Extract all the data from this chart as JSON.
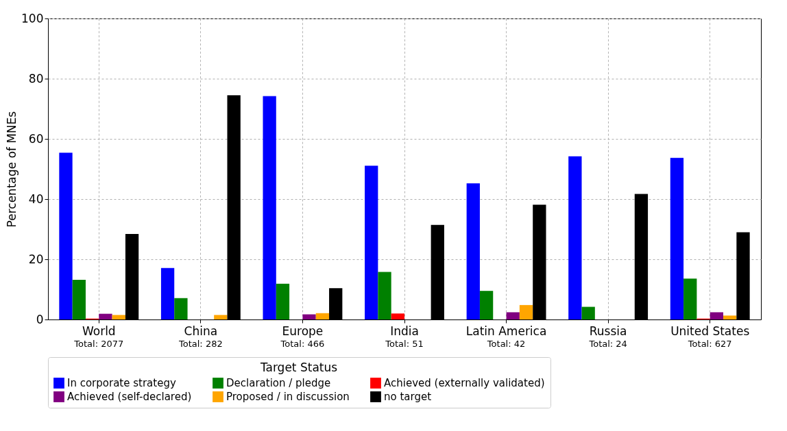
{
  "chart_data": {
    "type": "bar",
    "ylabel": "Percentage of MNEs",
    "legend_title": "Target Status",
    "categories": [
      "World",
      "China",
      "Europe",
      "India",
      "Latin America",
      "Russia",
      "United States"
    ],
    "series": [
      {
        "name": "In corporate strategy",
        "color": "#0000ff",
        "values": [
          55.4,
          17.1,
          74.2,
          51.1,
          45.2,
          54.2,
          53.7
        ]
      },
      {
        "name": "Declaration / pledge",
        "color": "#008000",
        "values": [
          13.2,
          7.1,
          11.9,
          15.8,
          9.5,
          4.2,
          13.6
        ]
      },
      {
        "name": "Achieved (externally validated)",
        "color": "#ff0000",
        "values": [
          0.3,
          0,
          0,
          2.0,
          0,
          0,
          0.3
        ]
      },
      {
        "name": "Achieved (self-declared)",
        "color": "#800080",
        "values": [
          1.9,
          0,
          1.7,
          0,
          2.4,
          0,
          2.4
        ]
      },
      {
        "name": "Proposed / in discussion",
        "color": "#ffa500",
        "values": [
          1.5,
          1.5,
          2.1,
          0,
          4.8,
          0,
          1.3
        ]
      },
      {
        "name": "no target",
        "color": "#000000",
        "values": [
          28.4,
          74.5,
          10.4,
          31.4,
          38.1,
          41.7,
          29.0
        ]
      }
    ],
    "ylim": [
      0,
      100
    ],
    "yticks": [
      0,
      20,
      40,
      60,
      80,
      100
    ],
    "grid": true,
    "legend": "bottom",
    "annotations": [
      "Total: 2077",
      "Total: 282",
      "Total: 466",
      "Total: 51",
      "Total: 42",
      "Total: 24",
      "Total: 627"
    ]
  }
}
